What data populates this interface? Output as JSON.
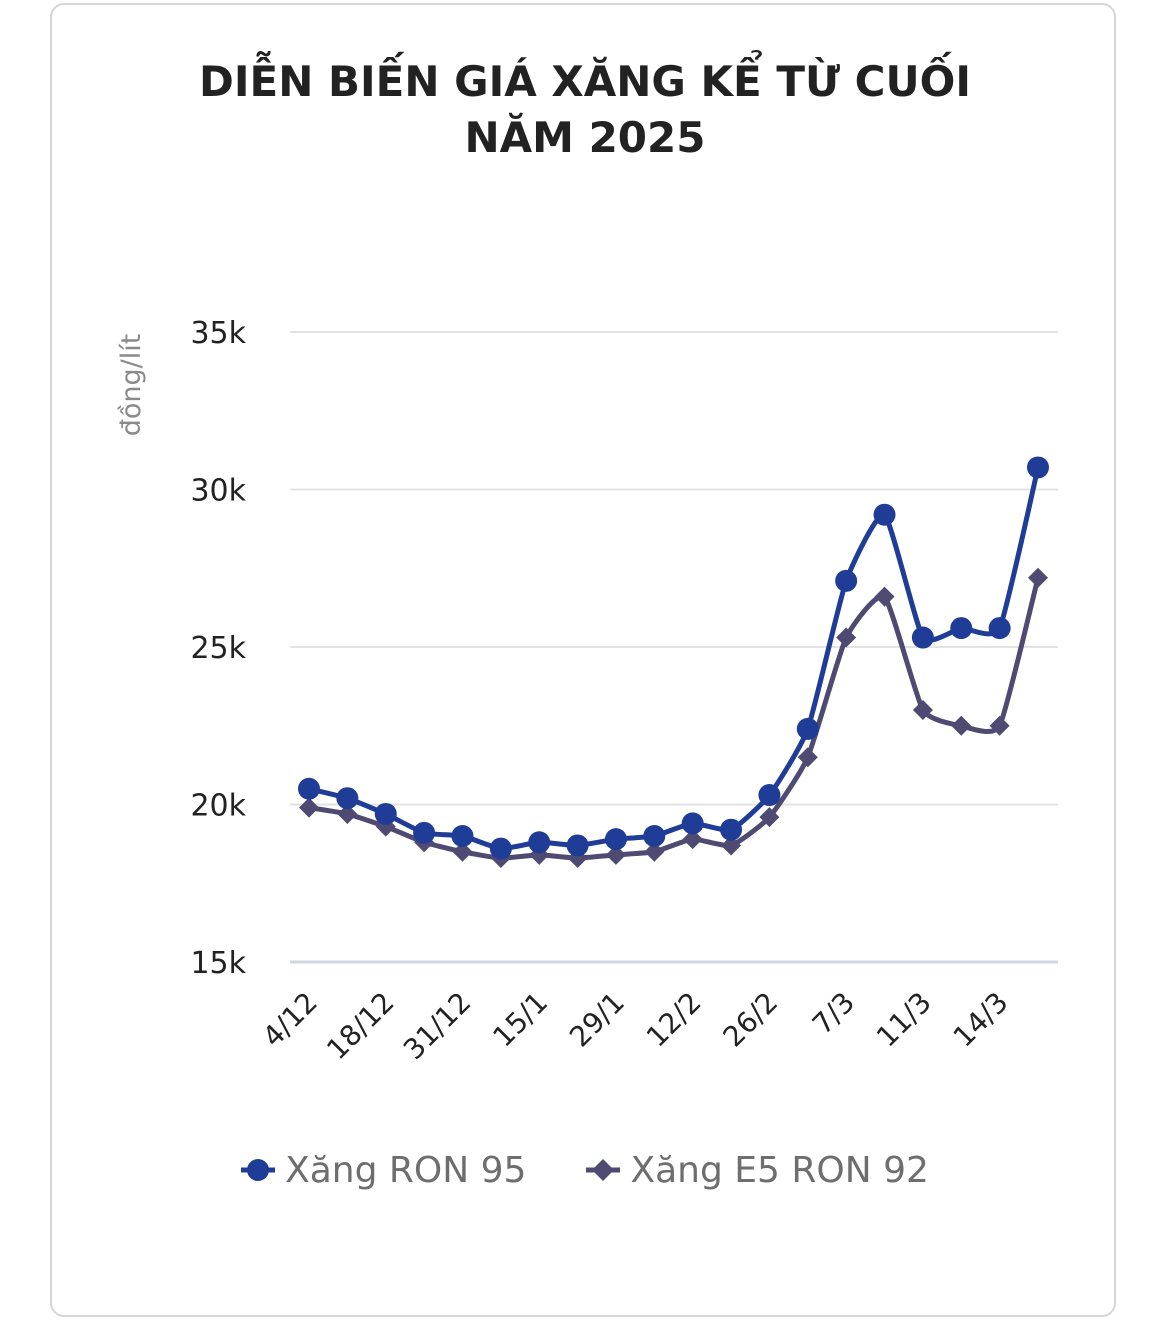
{
  "chart_data": {
    "type": "line",
    "title_lines": [
      "DIỄN BIẾN GIÁ XĂNG KỂ TỪ CUỐI",
      "NĂM 2025"
    ],
    "ylabel": "đồng/lít",
    "xlabel": "",
    "ylim": [
      15000,
      35000
    ],
    "yticks": [
      15000,
      20000,
      25000,
      30000,
      35000
    ],
    "ytick_labels": [
      "15k",
      "20k",
      "25k",
      "30k",
      "35k"
    ],
    "grid": true,
    "legend_position": "bottom",
    "x_count": 20,
    "category_labels": [
      {
        "index": 0,
        "label": "4/12"
      },
      {
        "index": 2,
        "label": "18/12"
      },
      {
        "index": 4,
        "label": "31/12"
      },
      {
        "index": 6,
        "label": "15/1"
      },
      {
        "index": 8,
        "label": "29/1"
      },
      {
        "index": 10,
        "label": "12/2"
      },
      {
        "index": 12,
        "label": "26/2"
      },
      {
        "index": 14,
        "label": "7/3"
      },
      {
        "index": 16,
        "label": "11/3"
      },
      {
        "index": 18,
        "label": "14/3"
      }
    ],
    "series": [
      {
        "name": "Xăng RON 95",
        "color": "#1f3c96",
        "marker": "circle",
        "values": [
          20500,
          20200,
          19700,
          19100,
          19000,
          18600,
          18800,
          18700,
          18900,
          19000,
          19400,
          19200,
          20300,
          22400,
          27100,
          29200,
          25300,
          25600,
          25600,
          30700
        ]
      },
      {
        "name": "Xăng E5 RON 92",
        "color": "#4f4a72",
        "marker": "diamond",
        "values": [
          19900,
          19700,
          19300,
          18800,
          18500,
          18300,
          18400,
          18300,
          18400,
          18500,
          18900,
          18700,
          19600,
          21500,
          25300,
          26600,
          23000,
          22500,
          22500,
          27200
        ]
      }
    ]
  }
}
